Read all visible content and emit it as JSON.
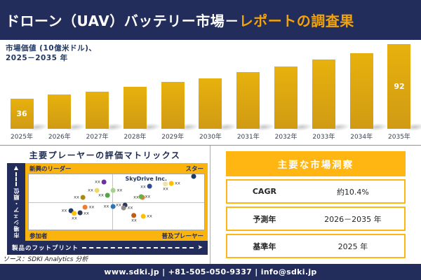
{
  "header": {
    "title_main": "ドローン（UAV）バッテリー市場－",
    "title_accent": "レポートの調査果"
  },
  "chart": {
    "subtitle_line1": "市場価値 (10億米ドル)、",
    "subtitle_line2": "2025－2035 年",
    "first_bar_label": "36",
    "last_bar_label": "92"
  },
  "chart_data": {
    "type": "bar",
    "title": "市場価値 (10億米ドル)、2025－2035 年",
    "categories": [
      "2025年",
      "2026年",
      "2027年",
      "2028年",
      "2029年",
      "2030年",
      "2031年",
      "2032年",
      "2033年",
      "2034年",
      "2035年"
    ],
    "values": [
      36,
      40,
      43,
      48,
      53,
      57,
      63,
      69,
      76,
      83,
      92
    ],
    "data_labels_shown": {
      "2025年": "36",
      "2035年": "92"
    },
    "xlabel": "",
    "ylabel": "市場価値 (10億米ドル)",
    "ylim": [
      0,
      100
    ],
    "grid": false,
    "legend": "none",
    "bar_color": "#D9A413"
  },
  "matrix": {
    "title": "主要プレーヤーの評価マトリックス",
    "quadrant_labels": {
      "top_left": "新興のリーダー",
      "top_right": "スター",
      "bottom_left": "参加者",
      "bottom_right": "普及プレーヤー"
    },
    "y_axis_label": "市場シェア・順位",
    "x_axis_label": "製品のフットプリント",
    "highlight_company": "SkyDrive Inc.",
    "point_label": "xx",
    "points": [
      {
        "x": 41,
        "y": 14,
        "color": "#7030A0",
        "label_side": "l"
      },
      {
        "x": 37,
        "y": 29,
        "color": "#EDD868",
        "label_side": "l"
      },
      {
        "x": 29,
        "y": 42,
        "color": "#A98A10",
        "label_side": "l"
      },
      {
        "x": 43,
        "y": 38,
        "color": "#55A546",
        "label_side": "l"
      },
      {
        "x": 22,
        "y": 66,
        "color": "#1F3864",
        "label_side": "l"
      },
      {
        "x": 34,
        "y": 59,
        "color": "#ED7D31",
        "label_side": "r"
      },
      {
        "x": 31,
        "y": 70,
        "color": "#2B3A55",
        "label_side": "r"
      },
      {
        "x": 26,
        "y": 75,
        "color": "#FFC000",
        "label_side": "b"
      },
      {
        "x": 46,
        "y": 58,
        "color": "#2E75B6",
        "label_side": "l"
      },
      {
        "x": 50,
        "y": 29,
        "color": "#A9D18E",
        "label_side": "r"
      },
      {
        "x": 67,
        "y": 22,
        "color": "#2E4B8F",
        "label_side": "l"
      },
      {
        "x": 78,
        "y": 22,
        "color": "#EFE3A8",
        "label_side": "b"
      },
      {
        "x": 83,
        "y": 16,
        "color": "#FFC000",
        "label_side": "r"
      },
      {
        "x": 63,
        "y": 42,
        "color": "#ED7D31",
        "label_side": "l"
      },
      {
        "x": 66,
        "y": 40,
        "color": "#70AD47",
        "label_side": "r"
      },
      {
        "x": 94,
        "y": 4,
        "color": "#1F3864",
        "label_side": "n"
      },
      {
        "x": 53,
        "y": 56,
        "color": "#2B3A55",
        "label_side": "l"
      },
      {
        "x": 56,
        "y": 61,
        "color": "#8C8C8C",
        "label_side": "r"
      },
      {
        "x": 60,
        "y": 79,
        "color": "#C55A11",
        "label_side": "b"
      },
      {
        "x": 67,
        "y": 76,
        "color": "#FFC000",
        "label_side": "r"
      }
    ]
  },
  "insights": {
    "title": "主要な市場洞察",
    "rows": [
      {
        "label": "CAGR",
        "value": "約10.4%"
      },
      {
        "label": "予測年",
        "value": "2026－2035 年"
      },
      {
        "label": "基準年",
        "value": "2025 年"
      }
    ]
  },
  "source": "ソース：SDKI Analytics 分析",
  "footer": "www.sdki.jp | +81-505-050-9337 | info@sdki.jp",
  "colors": {
    "navy": "#232D5C",
    "accent_gold": "#F0A30A",
    "bar_gold": "#D9A413",
    "frame_gold": "#FBB40D",
    "table_gold": "#FFB612"
  }
}
